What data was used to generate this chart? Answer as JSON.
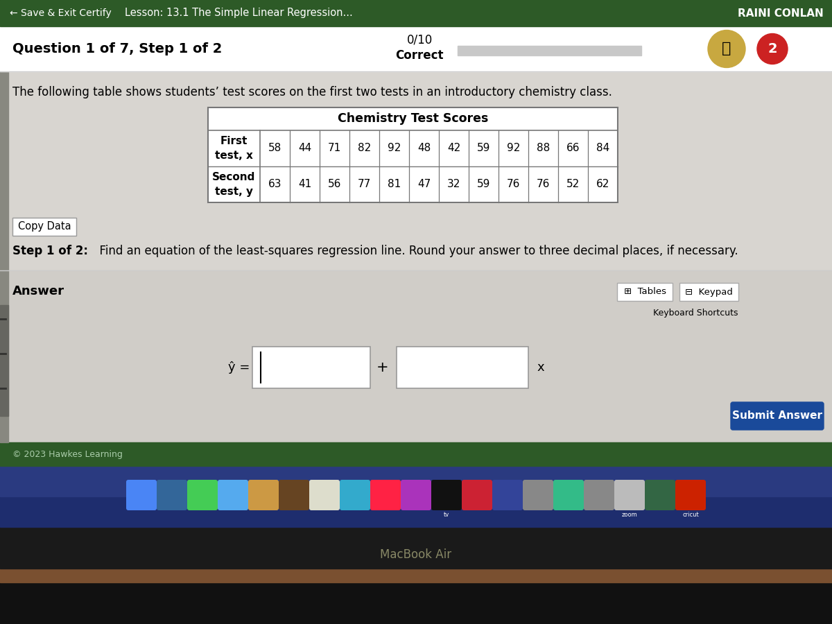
{
  "top_bar_color": "#2d5a27",
  "top_bar_text_left": "← Save & Exit Certify",
  "top_bar_text_lesson": "Lesson: 13.1 The Simple Linear Regression...",
  "top_bar_text_right": "RAINI CONLAN",
  "main_bg_color": "#dcdad6",
  "question_header_bg": "#ffffff",
  "question_text": "Question 1 of 7, Step 1 of 2",
  "score_text_line1": "0/10",
  "score_text_line2": "Correct",
  "body_text": "The following table shows students’ test scores on the first two tests in an introductory chemistry class.",
  "table_title": "Chemistry Test Scores",
  "table_row1_label": "First\ntest, x",
  "table_row2_label": "Second\ntest, y",
  "row1_values": [
    58,
    44,
    71,
    82,
    92,
    48,
    42,
    59,
    92,
    88,
    66,
    84
  ],
  "row2_values": [
    63,
    41,
    56,
    77,
    81,
    47,
    32,
    59,
    76,
    76,
    52,
    62
  ],
  "copy_data_btn": "Copy Data",
  "step_text_bold": "Step 1 of 2:",
  "step_text_regular": "  Find an equation of the least-squares regression line. Round your answer to three decimal places, if necessary.",
  "answer_label": "Answer",
  "answer_eq_label": "ŷ =",
  "plus_sign": "+",
  "x_label": "x",
  "tables_btn": "Tables",
  "keypad_btn": "Keypad",
  "shortcuts_text": "Keyboard Shortcuts",
  "submit_btn": "Submit Answer",
  "copyright_text": "© 2023 Hawkes Learning",
  "dock_label": "MacBook Air",
  "progress_bar_color": "#c8c8c8",
  "badge_color": "#c8a840",
  "red_badge_color": "#cc2222",
  "table_border_color": "#777777",
  "dock_bg": "#1a2a5a",
  "dock_bar_bg": "#0a0a1a",
  "wood_bg_color": "#7a5030",
  "footer_green": "#2d5a27",
  "app_colors": [
    "#4488ff",
    "#3366cc",
    "#33cc44",
    "#44aacc",
    "#ee8833",
    "#8855aa",
    "#cccccc",
    "#dddddd",
    "#ff2244",
    "#cc44bb",
    "#111111",
    "#cc2244",
    "#ff4422",
    "#cc3322",
    "#7733aa",
    "#111111",
    "#33ccaa",
    "#dddddd",
    "#888888",
    "#555555",
    "#999999",
    "#cccccc"
  ],
  "answer_section_bg": "#d8d5d0"
}
